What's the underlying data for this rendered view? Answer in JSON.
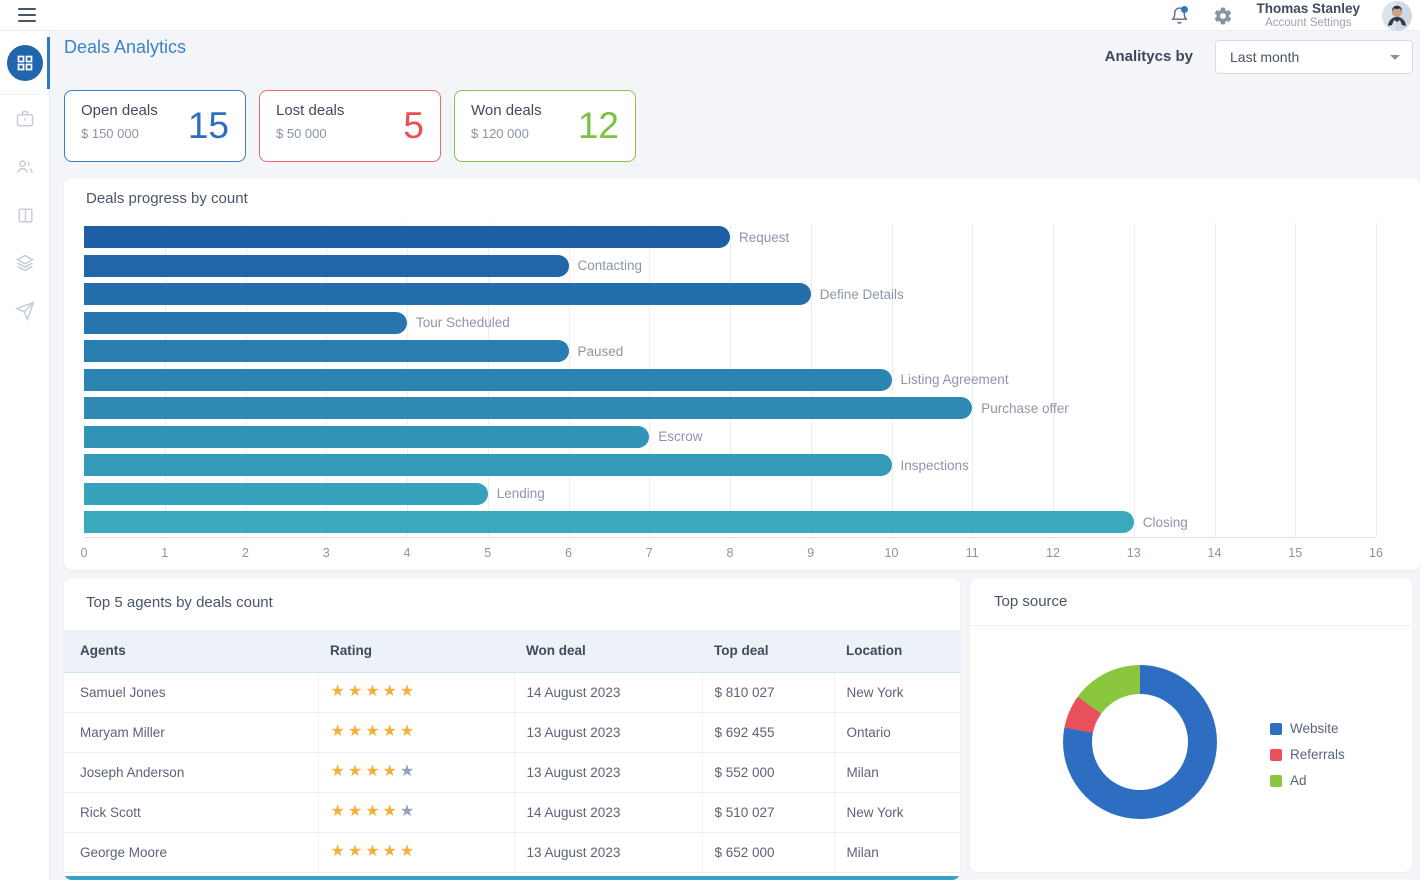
{
  "topbar": {
    "user_name": "Thomas Stanley",
    "user_role": "Account Settings"
  },
  "sidebar": {
    "items": [
      {
        "name": "dashboard",
        "active": true
      },
      {
        "name": "deals",
        "active": false
      },
      {
        "name": "contacts",
        "active": false
      },
      {
        "name": "board",
        "active": false
      },
      {
        "name": "stack",
        "active": false
      },
      {
        "name": "send",
        "active": false
      }
    ],
    "active_color": "#2166ad",
    "indicator_color": "#2e79c7"
  },
  "header": {
    "title": "Deals Analytics",
    "filter_label": "Analitycs by",
    "filter_value": "Last month"
  },
  "summary_cards": [
    {
      "label": "Open deals",
      "amount": "$ 150 000",
      "count": "15",
      "border_color": "#3a7cc4",
      "count_color": "#2b6fc1"
    },
    {
      "label": "Lost deals",
      "amount": "$ 50 000",
      "count": "5",
      "border_color": "#ee6b66",
      "count_color": "#e9504e"
    },
    {
      "label": "Won deals",
      "amount": "$ 120 000",
      "count": "12",
      "border_color": "#8bc34a",
      "count_color": "#7cc142"
    }
  ],
  "chart_data": [
    {
      "type": "bar",
      "orientation": "horizontal",
      "title": "Deals progress by count",
      "categories": [
        "Request",
        "Contacting",
        "Define Details",
        "Tour Scheduled",
        "Paused",
        "Listing Agreement",
        "Purchase offer",
        "Escrow",
        "Inspections",
        "Lending",
        "Closing"
      ],
      "values": [
        8,
        6,
        9,
        4,
        6,
        10,
        11,
        7,
        10,
        5,
        13
      ],
      "xlabel": "",
      "ylabel": "",
      "xlim": [
        0,
        16
      ],
      "x_tick_step": 1,
      "grid": true,
      "bar_color_start": "#1e5fa7",
      "bar_color_end": "#3aa9bd",
      "label_position": "right-of-bar"
    },
    {
      "type": "pie",
      "title": "Top source",
      "labels": [
        "Website",
        "Referrals",
        "Ad"
      ],
      "values": [
        78,
        7,
        15
      ],
      "colors": [
        "#2d6ec3",
        "#e8515a",
        "#8bc63f"
      ],
      "donut": true,
      "legend_position": "right"
    }
  ],
  "agents_table": {
    "title": "Top 5 agents by deals count",
    "columns": [
      "Agents",
      "Rating",
      "Won deal",
      "Top deal",
      "Location"
    ],
    "rows": [
      {
        "agent": "Samuel Jones",
        "rating": 5,
        "won_deal": "14 August 2023",
        "top_deal": "$ 810 027",
        "location": "New York"
      },
      {
        "agent": "Maryam Miller",
        "rating": 5,
        "won_deal": "13 August 2023",
        "top_deal": "$ 692 455",
        "location": "Ontario"
      },
      {
        "agent": "Joseph Anderson",
        "rating": 4,
        "won_deal": "13 August 2023",
        "top_deal": "$ 552 000",
        "location": "Milan"
      },
      {
        "agent": "Rick Scott",
        "rating": 4,
        "won_deal": "14 August 2023",
        "top_deal": "$ 510 027",
        "location": "New York"
      },
      {
        "agent": "George Moore",
        "rating": 5,
        "won_deal": "13 August 2023",
        "top_deal": "$ 652 000",
        "location": "Milan"
      }
    ],
    "star_filled_color": "#f5af3b",
    "star_empty_color": "#93a0b8",
    "next_row_peek_color": "#35a3c9"
  }
}
